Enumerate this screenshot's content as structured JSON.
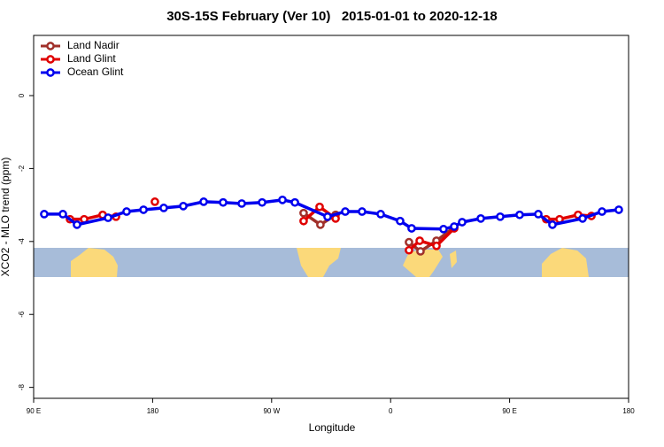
{
  "chart_data": {
    "type": "line",
    "title": "30S-15S February (Ver 10)   2015-01-01 to 2020-12-18",
    "x_label": "Longitude",
    "y_label": "XCO2 - MLO trend (ppm)",
    "xlim": [
      90,
      540
    ],
    "xticks": [
      {
        "value": 90,
        "label": "90 E"
      },
      180,
      {
        "value": 270,
        "label": "90 W"
      },
      {
        "value": 360,
        "label": "0"
      },
      {
        "value": 450,
        "label": "90 E"
      },
      {
        "value": 540,
        "label": "180"
      }
    ],
    "ylim": [
      -8.3,
      1.65
    ],
    "yticks": [
      0,
      -2,
      -4,
      -6,
      -8
    ],
    "legend": "top-left",
    "series": [
      {
        "name": "Land Nadir",
        "color": "#a0302a",
        "x": [
          294.2,
          306.9,
          318.4,
          null,
          373.9,
          382.6,
          394.7,
          408.1
        ],
        "values": [
          -3.22,
          -3.54,
          -3.27,
          null,
          -4.02,
          -4.27,
          -3.98,
          -3.61
        ]
      },
      {
        "name": "Land Glint",
        "color": "#e00000",
        "x": [
          117.5,
          128.2,
          142.2,
          152.3,
          null,
          181.7,
          null,
          294.2,
          306.3,
          318.4,
          null,
          373.9,
          382.0,
          394.7,
          408.1,
          null,
          477.7,
          487.8,
          501.8,
          511.9
        ],
        "values": [
          -3.39,
          -3.39,
          -3.27,
          -3.32,
          null,
          -2.91,
          null,
          -3.44,
          -3.05,
          -3.37,
          null,
          -4.24,
          -3.98,
          -4.12,
          -3.64,
          null,
          -3.39,
          -3.39,
          -3.27,
          -3.3
        ]
      },
      {
        "name": "Ocean Glint",
        "color": "#0000ee",
        "x": [
          98.0,
          112.1,
          122.8,
          146.3,
          160.3,
          173.1,
          188.4,
          203.2,
          218.6,
          233.3,
          247.4,
          262.8,
          278.2,
          287.6,
          312.3,
          325.7,
          338.4,
          352.5,
          367.2,
          375.9,
          400.0,
          408.1,
          414.1,
          428.2,
          442.9,
          457.6,
          471.7,
          482.4,
          505.2,
          519.9,
          532.6
        ],
        "values": [
          -3.25,
          -3.25,
          -3.54,
          -3.35,
          -3.18,
          -3.13,
          -3.08,
          -3.03,
          -2.91,
          -2.93,
          -2.96,
          -2.93,
          -2.86,
          -2.93,
          -3.32,
          -3.18,
          -3.18,
          -3.25,
          -3.44,
          -3.64,
          -3.66,
          -3.59,
          -3.47,
          -3.37,
          -3.32,
          -3.27,
          -3.25,
          -3.54,
          -3.37,
          -3.18,
          -3.13
        ]
      }
    ]
  }
}
